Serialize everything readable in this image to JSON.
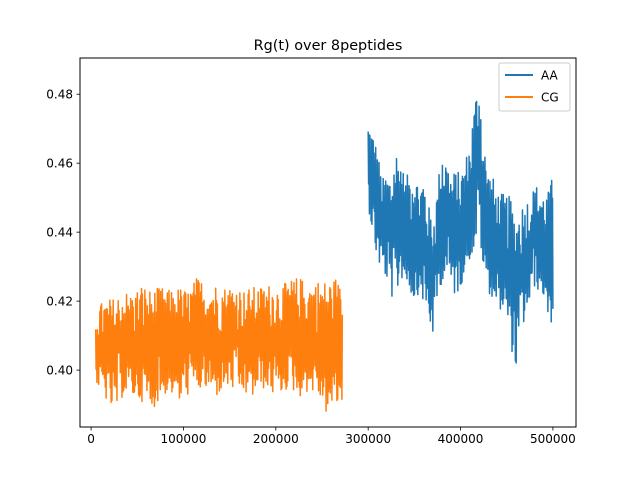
{
  "chart_data": {
    "type": "line",
    "title": "Rg(t) over 8peptides",
    "xlabel": "",
    "ylabel": "",
    "xlim": [
      -12000,
      525000
    ],
    "ylim": [
      0.3835,
      0.4905
    ],
    "x_ticks": [
      {
        "value": 0,
        "label": "0"
      },
      {
        "value": 100000,
        "label": "100000"
      },
      {
        "value": 200000,
        "label": "200000"
      },
      {
        "value": 300000,
        "label": "300000"
      },
      {
        "value": 400000,
        "label": "400000"
      },
      {
        "value": 500000,
        "label": "500000"
      }
    ],
    "y_ticks": [
      {
        "value": 0.4,
        "label": "0.40"
      },
      {
        "value": 0.42,
        "label": "0.42"
      },
      {
        "value": 0.44,
        "label": "0.44"
      },
      {
        "value": 0.46,
        "label": "0.46"
      },
      {
        "value": 0.48,
        "label": "0.48"
      }
    ],
    "grid": false,
    "legend": "top-right",
    "series": [
      {
        "name": "AA",
        "color": "#1f77b4",
        "x": [
          300000,
          305000,
          310000,
          315000,
          320000,
          325000,
          330000,
          335000,
          340000,
          345000,
          350000,
          355000,
          360000,
          365000,
          370000,
          375000,
          380000,
          385000,
          390000,
          395000,
          400000,
          405000,
          410000,
          415000,
          420000,
          425000,
          430000,
          435000,
          440000,
          445000,
          450000,
          455000,
          460000,
          465000,
          470000,
          475000,
          480000,
          485000,
          490000,
          495000,
          500000
        ],
        "min": [
          0.447,
          0.438,
          0.43,
          0.428,
          0.425,
          0.42,
          0.418,
          0.426,
          0.424,
          0.422,
          0.418,
          0.422,
          0.418,
          0.413,
          0.409,
          0.418,
          0.425,
          0.426,
          0.422,
          0.42,
          0.423,
          0.428,
          0.431,
          0.433,
          0.44,
          0.425,
          0.422,
          0.419,
          0.416,
          0.417,
          0.412,
          0.405,
          0.398,
          0.41,
          0.413,
          0.418,
          0.423,
          0.422,
          0.42,
          0.413,
          0.412
        ],
        "max": [
          0.473,
          0.47,
          0.465,
          0.456,
          0.458,
          0.458,
          0.466,
          0.463,
          0.456,
          0.459,
          0.461,
          0.454,
          0.458,
          0.449,
          0.445,
          0.454,
          0.467,
          0.462,
          0.458,
          0.459,
          0.458,
          0.462,
          0.467,
          0.479,
          0.487,
          0.468,
          0.459,
          0.457,
          0.453,
          0.452,
          0.452,
          0.451,
          0.446,
          0.449,
          0.45,
          0.452,
          0.454,
          0.455,
          0.452,
          0.453,
          0.458
        ]
      },
      {
        "name": "CG",
        "color": "#ff7f0e",
        "x": [
          5000,
          15000,
          25000,
          35000,
          45000,
          55000,
          65000,
          75000,
          85000,
          95000,
          105000,
          115000,
          125000,
          135000,
          145000,
          155000,
          165000,
          175000,
          185000,
          195000,
          205000,
          215000,
          225000,
          235000,
          245000,
          255000,
          265000,
          272000
        ],
        "min": [
          0.395,
          0.391,
          0.386,
          0.392,
          0.391,
          0.39,
          0.387,
          0.391,
          0.393,
          0.389,
          0.392,
          0.393,
          0.393,
          0.391,
          0.394,
          0.393,
          0.392,
          0.391,
          0.394,
          0.392,
          0.392,
          0.394,
          0.391,
          0.393,
          0.392,
          0.386,
          0.388,
          0.389
        ],
        "max": [
          0.419,
          0.421,
          0.422,
          0.424,
          0.423,
          0.426,
          0.424,
          0.425,
          0.424,
          0.425,
          0.424,
          0.428,
          0.426,
          0.426,
          0.425,
          0.426,
          0.424,
          0.425,
          0.425,
          0.426,
          0.425,
          0.427,
          0.428,
          0.426,
          0.427,
          0.427,
          0.428,
          0.424
        ]
      }
    ]
  }
}
